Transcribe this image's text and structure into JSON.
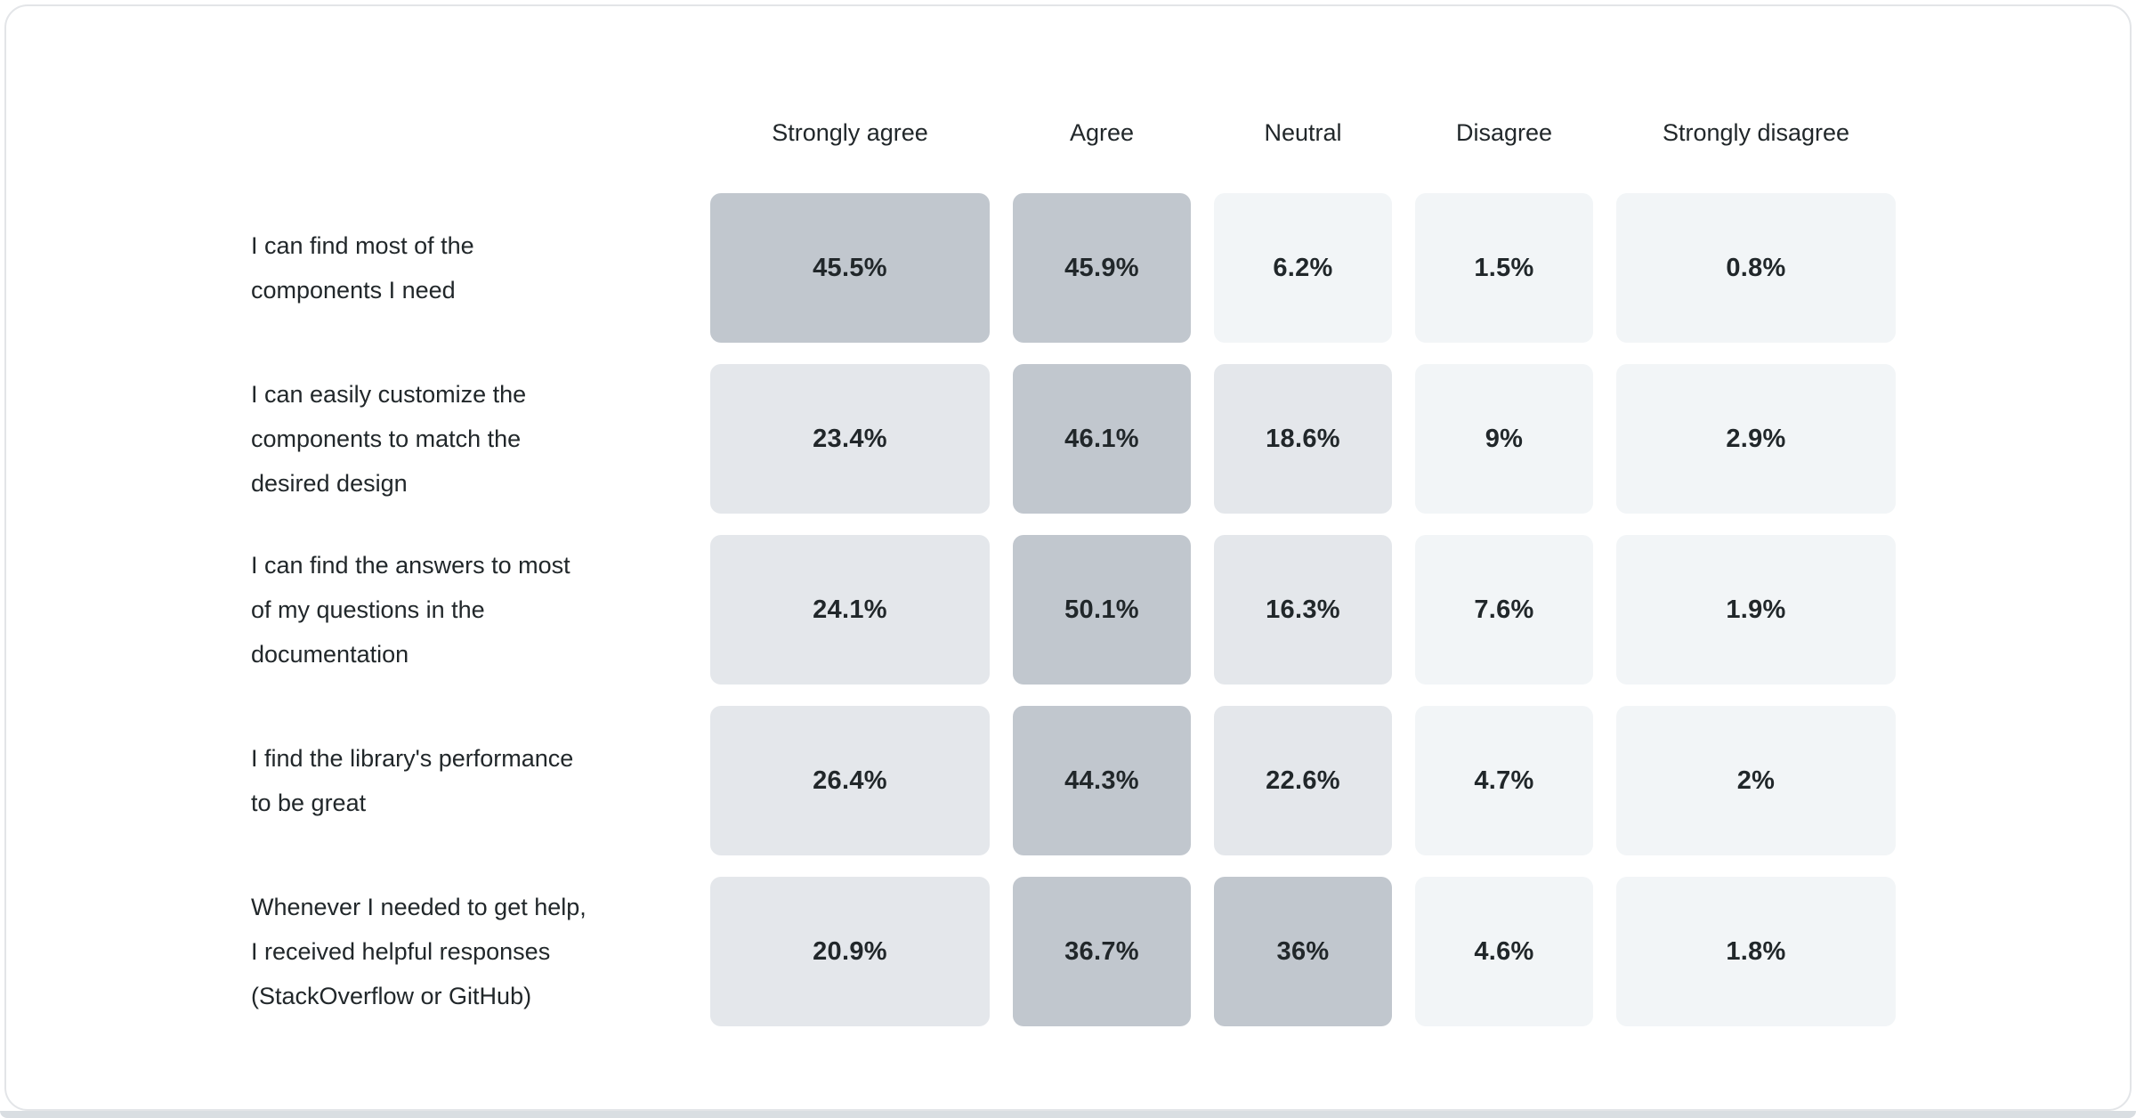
{
  "page": {
    "background": "#ffffff",
    "card_border_color": "#e3e5e8",
    "bottom_strip_color": "#d9dee2",
    "text_color": "#21272a"
  },
  "chart_data": {
    "type": "heatmap",
    "title": "",
    "description": "Likert-scale survey results heatmap: agreement percentages per statement",
    "columns": [
      "Strongly agree",
      "Agree",
      "Neutral",
      "Disagree",
      "Strongly disagree"
    ],
    "rows": [
      {
        "label": "I can find most of the components I need",
        "label_lines": [
          "I can find most of the",
          "components I need"
        ],
        "values": [
          45.5,
          45.9,
          6.2,
          1.5,
          0.8
        ],
        "display": [
          "45.5%",
          "45.9%",
          "6.2%",
          "1.5%",
          "0.8%"
        ]
      },
      {
        "label": "I can easily customize the components to match the desired design",
        "label_lines": [
          "I can easily customize the",
          "components to match the",
          "desired design"
        ],
        "values": [
          23.4,
          46.1,
          18.6,
          9,
          2.9
        ],
        "display": [
          "23.4%",
          "46.1%",
          "18.6%",
          "9%",
          "2.9%"
        ]
      },
      {
        "label": "I can find the answers to most of my questions in the documentation",
        "label_lines": [
          "I can find the answers to most",
          "of my questions in the",
          "documentation"
        ],
        "values": [
          24.1,
          50.1,
          16.3,
          7.6,
          1.9
        ],
        "display": [
          "24.1%",
          "50.1%",
          "16.3%",
          "7.6%",
          "1.9%"
        ]
      },
      {
        "label": "I find the library's performance to be great",
        "label_lines": [
          "I find the library's performance",
          "to be great"
        ],
        "values": [
          26.4,
          44.3,
          22.6,
          4.7,
          2
        ],
        "display": [
          "26.4%",
          "44.3%",
          "22.6%",
          "4.7%",
          "2%"
        ]
      },
      {
        "label": "Whenever I needed to get help, I received helpful responses (StackOverflow or GitHub)",
        "label_lines": [
          "Whenever I needed to get help,",
          "I received helpful responses",
          "(StackOverflow or GitHub)"
        ],
        "values": [
          20.9,
          36.7,
          36,
          4.6,
          1.8
        ],
        "display": [
          "20.9%",
          "36.7%",
          "36%",
          "4.6%",
          "1.8%"
        ]
      }
    ],
    "color_scale": {
      "bins": [
        {
          "min": 30,
          "color": "#c1c7ce"
        },
        {
          "min": 10,
          "color": "#e4e7eb"
        },
        {
          "min": 0,
          "color": "#f2f5f7"
        }
      ]
    },
    "value_text_color": "#21272a",
    "legend_position": "none",
    "grid": false,
    "xlabel": "",
    "ylabel": ""
  }
}
